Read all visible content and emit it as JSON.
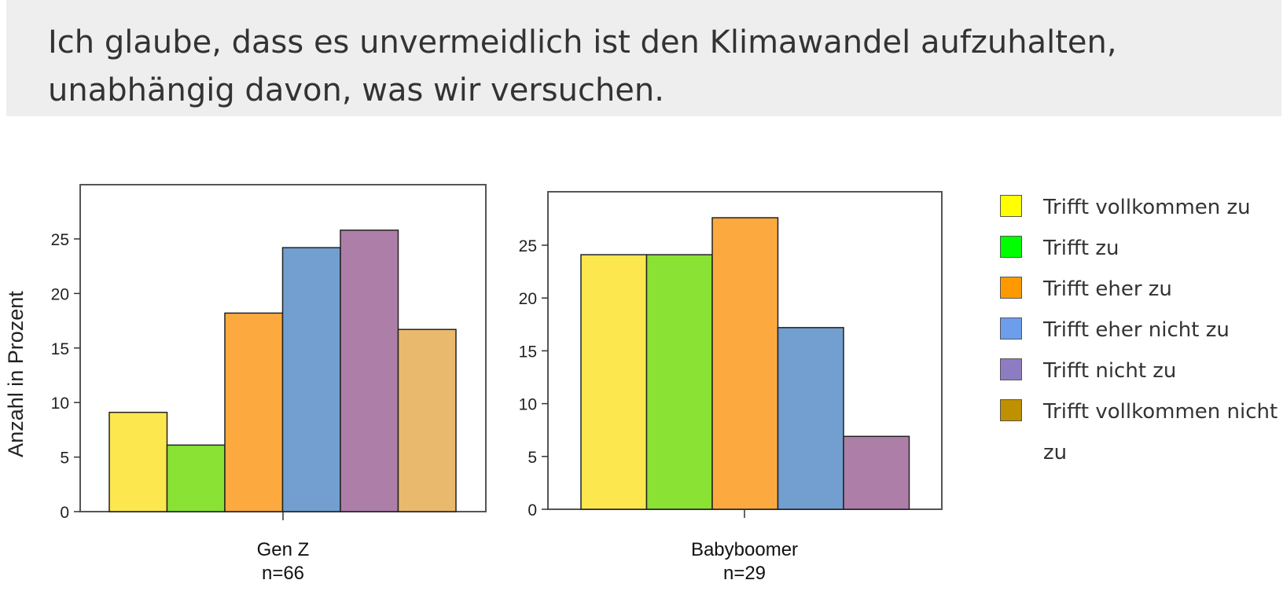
{
  "question": {
    "line1": "Ich glaube, dass es unvermeidlich ist den Klimawandel aufzuhalten,",
    "line2": "unabhängig davon, was wir versuchen."
  },
  "legend": {
    "items": [
      {
        "label": "Trifft vollkommen zu",
        "color": "#ffff00"
      },
      {
        "label": "Trifft zu",
        "color": "#00ff00"
      },
      {
        "label": "Trifft eher zu",
        "color": "#ff9900"
      },
      {
        "label": "Trifft eher nicht zu",
        "color": "#6d9eeb"
      },
      {
        "label": "Trifft nicht zu",
        "color": "#8e7cc3"
      },
      {
        "label": "Trifft vollkommen nicht zu",
        "color": "#bf9000"
      }
    ]
  },
  "chart_data": [
    {
      "type": "bar",
      "ylabel": "Anzahl in Prozent",
      "xlabel": "Gen Z",
      "sample": "n=66",
      "ylim": [
        0,
        30
      ],
      "yticks": [
        0,
        5,
        10,
        15,
        20,
        25
      ],
      "categories": [
        "Trifft vollkommen zu",
        "Trifft zu",
        "Trifft eher zu",
        "Trifft eher nicht zu",
        "Trifft nicht zu",
        "Trifft vollkommen nicht zu"
      ],
      "values": [
        9.1,
        6.1,
        18.2,
        24.2,
        25.8,
        16.7
      ],
      "colors": [
        "#fce74f",
        "#8ae234",
        "#fcaa40",
        "#729fcf",
        "#ad7fa8",
        "#e9b96e"
      ]
    },
    {
      "type": "bar",
      "ylabel": "",
      "xlabel": "Babyboomer",
      "sample": "n=29",
      "ylim": [
        0,
        30
      ],
      "yticks": [
        0,
        5,
        10,
        15,
        20,
        25
      ],
      "categories": [
        "Trifft vollkommen zu",
        "Trifft zu",
        "Trifft eher zu",
        "Trifft eher nicht zu",
        "Trifft nicht zu"
      ],
      "values": [
        24.1,
        24.1,
        27.6,
        17.2,
        6.9
      ],
      "colors": [
        "#fce74f",
        "#8ae234",
        "#fcaa40",
        "#729fcf",
        "#ad7fa8"
      ]
    }
  ]
}
